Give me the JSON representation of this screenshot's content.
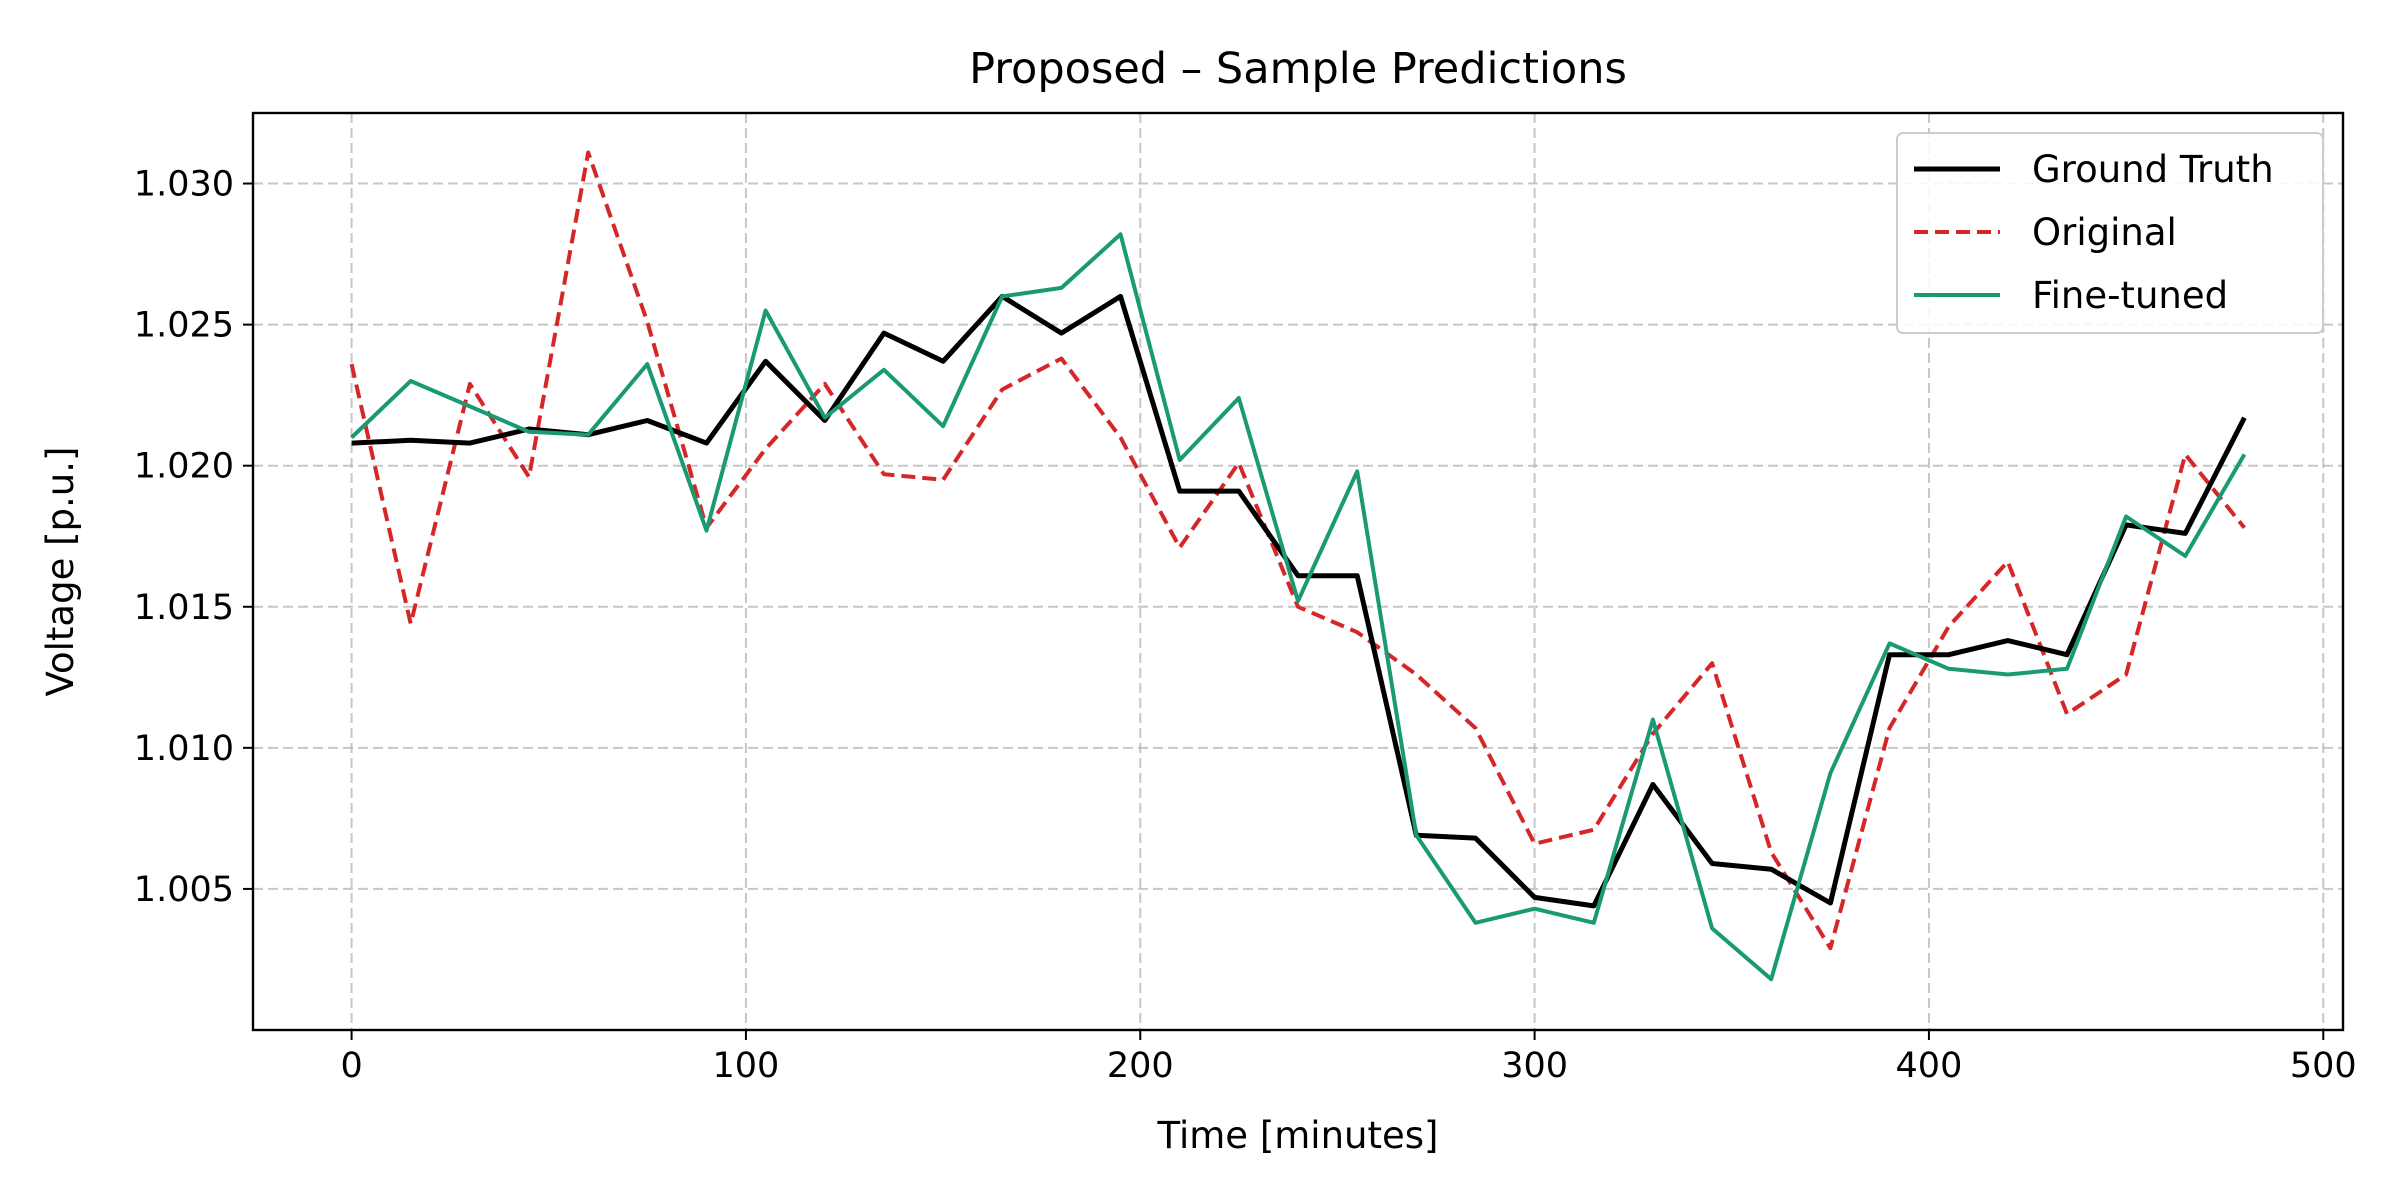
{
  "chart_data": {
    "type": "line",
    "title": "Proposed – Sample Predictions",
    "xlabel": "Time [minutes]",
    "ylabel": "Voltage [p.u.]",
    "xlim": [
      -25,
      505
    ],
    "ylim": [
      1.0,
      1.0325
    ],
    "x_ticks": [
      0,
      100,
      200,
      300,
      400,
      500
    ],
    "x_tick_labels": [
      "0",
      "100",
      "200",
      "300",
      "400",
      "500"
    ],
    "y_ticks": [
      1.005,
      1.01,
      1.015,
      1.02,
      1.025,
      1.03
    ],
    "y_tick_labels": [
      "1.005",
      "1.010",
      "1.015",
      "1.020",
      "1.025",
      "1.030"
    ],
    "grid": true,
    "legend_position": "upper-right",
    "x": [
      0,
      15,
      30,
      45,
      60,
      75,
      90,
      105,
      120,
      135,
      150,
      165,
      180,
      195,
      210,
      225,
      240,
      255,
      270,
      285,
      300,
      315,
      330,
      345,
      360,
      375,
      390,
      405,
      420,
      435,
      450,
      465,
      480
    ],
    "series": [
      {
        "name": "Ground Truth",
        "color": "#000000",
        "style": "solid",
        "values": [
          1.0208,
          1.0209,
          1.0208,
          1.0213,
          1.0211,
          1.0216,
          1.0208,
          1.0237,
          1.0216,
          1.0247,
          1.0237,
          1.026,
          1.0247,
          1.026,
          1.0191,
          1.0191,
          1.0161,
          1.0161,
          1.0069,
          1.0068,
          1.0047,
          1.0044,
          1.0087,
          1.0059,
          1.0057,
          1.0045,
          1.0133,
          1.0133,
          1.0138,
          1.0133,
          1.0179,
          1.0176,
          1.0217
        ]
      },
      {
        "name": "Original",
        "color": "#d62728",
        "style": "dashed",
        "values": [
          1.0236,
          1.0144,
          1.0229,
          1.0196,
          1.0311,
          1.0251,
          1.0178,
          1.0206,
          1.0229,
          1.0197,
          1.0195,
          1.0227,
          1.0238,
          1.021,
          1.0171,
          1.0201,
          1.015,
          1.0141,
          1.0126,
          1.0107,
          1.0066,
          1.0071,
          1.0105,
          1.013,
          1.0063,
          1.0029,
          1.0107,
          1.0143,
          1.0166,
          1.0112,
          1.0126,
          1.0204,
          1.0178
        ]
      },
      {
        "name": "Fine-tuned",
        "color": "#1a9a72",
        "style": "solid",
        "values": [
          1.021,
          1.023,
          1.0221,
          1.0212,
          1.0211,
          1.0236,
          1.0177,
          1.0255,
          1.0217,
          1.0234,
          1.0214,
          1.026,
          1.0263,
          1.0282,
          1.0202,
          1.0224,
          1.0152,
          1.0198,
          1.0069,
          1.0038,
          1.0043,
          1.0038,
          1.011,
          1.0036,
          1.0018,
          1.0091,
          1.0137,
          1.0128,
          1.0126,
          1.0128,
          1.0182,
          1.0168,
          1.0204
        ]
      }
    ]
  }
}
